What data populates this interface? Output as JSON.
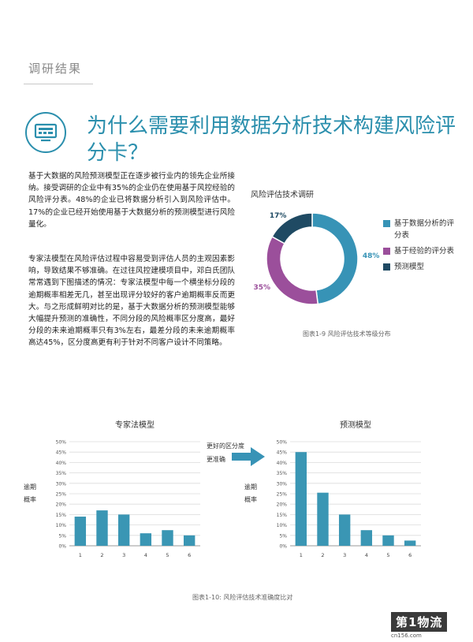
{
  "section": {
    "label": "调研结果"
  },
  "headline": {
    "text": "为什么需要利用数据分析技术构建风险评分卡？"
  },
  "body": {
    "paragraph1": "基于大数据的风险预测模型正在逐步被行业内的领先企业所接纳。接受调研的企业中有35%的企业仍在使用基于风控经验的风险评分表。48%的企业已将数据分析引入到风险评估中。17%的企业已经开始使用基于大数据分析的预测模型进行风险量化。",
    "paragraph2": "专家法模型在风险评估过程中容易受到评估人员的主观因素影响，导致结果不够准确。在过往风控建模项目中，邓白氏团队常常遇到下图描述的情况：专家法模型中每一个横坐标分段的逾期概率相差无几，甚至出现评分较好的客户逾期概率反而更大。与之形成鲜明对比的是，基于大数据分析的预测模型能够大幅提升预测的准确性，不同分段的风险概率区分度高，最好分段的未来逾期概率只有3%左右，最差分段的未来逾期概率高达45%，区分度高更有利于针对不同客户设计不同策略。"
  },
  "colors": {
    "accent": "#2b8fad",
    "blue": "#3793b6",
    "purple": "#9b4f9b",
    "navy": "#1f4a63",
    "bar": "#3a96b4"
  },
  "donut": {
    "title": "风险评估技术调研",
    "caption": "图表1-9 风险评估技术等级分布",
    "legend": [
      {
        "label": "基于数据分析的评分表"
      },
      {
        "label": "基于经验的评分表"
      },
      {
        "label": "预测模型"
      }
    ]
  },
  "chart_data": [
    {
      "type": "pie",
      "title": "风险评估技术调研",
      "categories": [
        "基于数据分析的评分表",
        "基于经验的评分表",
        "预测模型"
      ],
      "values": [
        48,
        35,
        17
      ],
      "labels": [
        "48%",
        "35%",
        "17%"
      ],
      "colors": [
        "#3793b6",
        "#9b4f9b",
        "#1f4a63"
      ],
      "legend": "right"
    },
    {
      "type": "bar",
      "title": "专家法模型",
      "ylabel": "逾期概率",
      "categories": [
        "1",
        "2",
        "3",
        "4",
        "5",
        "6"
      ],
      "values": [
        14,
        17,
        15,
        6,
        7.5,
        5
      ],
      "ylim": [
        0,
        50
      ],
      "yticks": [
        "0%",
        "5%",
        "10%",
        "15%",
        "20%",
        "25%",
        "30%",
        "35%",
        "40%",
        "45%",
        "50%"
      ],
      "grid": true
    },
    {
      "type": "bar",
      "title": "预测模型",
      "ylabel": "逾期概率",
      "categories": [
        "1",
        "2",
        "3",
        "4",
        "5",
        "6"
      ],
      "values": [
        45,
        25.5,
        15,
        7.5,
        5,
        2.5
      ],
      "ylim": [
        0,
        50
      ],
      "yticks": [
        "0%",
        "5%",
        "10%",
        "15%",
        "20%",
        "25%",
        "30%",
        "35%",
        "40%",
        "45%",
        "50%"
      ],
      "grid": true
    }
  ],
  "comparison": {
    "arrow_labels": [
      "更好的区分度",
      "更准确"
    ],
    "caption": "图表1-10: 风险评估技术准确度比对"
  },
  "watermark": {
    "text": "第1物流",
    "sub": "cn156.com"
  }
}
